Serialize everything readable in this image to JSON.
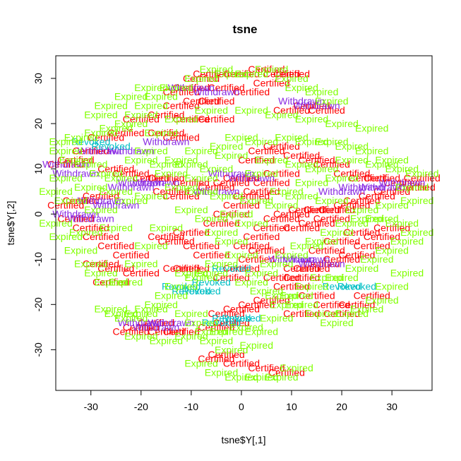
{
  "chart_data": {
    "type": "scatter",
    "title": "tsne",
    "xlabel": "tsne$Y[,1]",
    "ylabel": "tsne$Y[,2]",
    "xlim": [
      -37,
      38
    ],
    "ylim": [
      -39,
      35
    ],
    "xticks": [
      -30,
      -20,
      -10,
      0,
      10,
      20,
      30
    ],
    "yticks": [
      -30,
      -20,
      -10,
      0,
      10,
      20,
      30
    ],
    "grid": false,
    "legend": "none",
    "point_labels": [
      "Certified",
      "Withdrawn",
      "Expired",
      "Revoked"
    ],
    "colors": {
      "Certified": "#ff0000",
      "Withdrawn": "#8a2be2",
      "Expired": "#80ff00",
      "Revoked": "#00bfc4"
    },
    "series": [
      {
        "name": "Certified",
        "points": [
          [
            -6,
            31
          ],
          [
            0,
            31
          ],
          [
            5,
            32
          ],
          [
            8,
            31
          ],
          [
            10,
            31
          ],
          [
            -10,
            28
          ],
          [
            -12,
            27
          ],
          [
            -3,
            28
          ],
          [
            6,
            29
          ],
          [
            -8,
            25
          ],
          [
            -12,
            24
          ],
          [
            -5,
            25
          ],
          [
            14,
            24
          ],
          [
            17,
            23
          ],
          [
            -15,
            22
          ],
          [
            -10,
            21
          ],
          [
            -5,
            21
          ],
          [
            -20,
            21
          ],
          [
            -23,
            18
          ],
          [
            -27,
            17
          ],
          [
            -15,
            18
          ],
          [
            -12,
            17
          ],
          [
            -30,
            14
          ],
          [
            -33,
            12
          ],
          [
            -35,
            11
          ],
          [
            -25,
            10
          ],
          [
            -22,
            9
          ],
          [
            -18,
            8
          ],
          [
            -15,
            8
          ],
          [
            -10,
            7
          ],
          [
            -5,
            6
          ],
          [
            -2,
            7
          ],
          [
            -28,
            4
          ],
          [
            -32,
            3
          ],
          [
            -35,
            2
          ],
          [
            -33,
            -1
          ],
          [
            -30,
            -3
          ],
          [
            -28,
            -5
          ],
          [
            -25,
            -7
          ],
          [
            -22,
            -9
          ],
          [
            -28,
            -11
          ],
          [
            -25,
            -12
          ],
          [
            -20,
            -13
          ],
          [
            -26,
            -15
          ],
          [
            -13,
            -6
          ],
          [
            -15,
            -5
          ],
          [
            -10,
            -4
          ],
          [
            -8,
            -7
          ],
          [
            -12,
            -12
          ],
          [
            -10,
            -12
          ],
          [
            -6,
            -9
          ],
          [
            -4,
            -2
          ],
          [
            -2,
            0
          ],
          [
            0,
            2
          ],
          [
            2,
            4
          ],
          [
            4,
            5
          ],
          [
            6,
            7
          ],
          [
            8,
            9
          ],
          [
            3,
            12
          ],
          [
            5,
            14
          ],
          [
            8,
            15
          ],
          [
            12,
            13
          ],
          [
            15,
            12
          ],
          [
            18,
            11
          ],
          [
            22,
            9
          ],
          [
            25,
            8
          ],
          [
            28,
            8
          ],
          [
            32,
            7
          ],
          [
            35,
            6
          ],
          [
            36,
            8
          ],
          [
            30,
            5
          ],
          [
            27,
            4
          ],
          [
            24,
            3
          ],
          [
            22,
            2
          ],
          [
            19,
            1
          ],
          [
            16,
            1
          ],
          [
            13,
            1
          ],
          [
            10,
            0
          ],
          [
            8,
            -1
          ],
          [
            6,
            -3
          ],
          [
            4,
            -5
          ],
          [
            2,
            -7
          ],
          [
            5,
            -8
          ],
          [
            3,
            -10
          ],
          [
            0,
            -12
          ],
          [
            -2,
            -14
          ],
          [
            8,
            -14
          ],
          [
            12,
            -12
          ],
          [
            16,
            -11
          ],
          [
            20,
            -10
          ],
          [
            23,
            -9
          ],
          [
            26,
            -7
          ],
          [
            28,
            -5
          ],
          [
            30,
            -3
          ],
          [
            24,
            -4
          ],
          [
            20,
            -6
          ],
          [
            17,
            -8
          ],
          [
            14,
            -12
          ],
          [
            12,
            -14
          ],
          [
            10,
            -16
          ],
          [
            15,
            -18
          ],
          [
            18,
            -20
          ],
          [
            20,
            -22
          ],
          [
            23,
            -20
          ],
          [
            26,
            -18
          ],
          [
            12,
            -22
          ],
          [
            6,
            -19
          ],
          [
            3,
            -20
          ],
          [
            0,
            -21
          ],
          [
            -3,
            -22
          ],
          [
            -5,
            -25
          ],
          [
            -2,
            -24
          ],
          [
            -17,
            -24
          ],
          [
            -15,
            -26
          ],
          [
            -12,
            -26
          ],
          [
            -20,
            -25
          ],
          [
            -22,
            -26
          ],
          [
            -5,
            -32
          ],
          [
            0,
            -33
          ],
          [
            5,
            -34
          ],
          [
            9,
            -35
          ],
          [
            -3,
            -31
          ],
          [
            -14,
            5
          ],
          [
            -12,
            4
          ],
          [
            0,
            8
          ],
          [
            12,
            -3
          ],
          [
            15,
            -2
          ],
          [
            18,
            -1
          ],
          [
            -8,
            30
          ],
          [
            2,
            27
          ],
          [
            10,
            23
          ]
        ]
      },
      {
        "name": "Withdrawn",
        "points": [
          [
            -10,
            28
          ],
          [
            -5,
            27
          ],
          [
            12,
            25
          ],
          [
            15,
            24
          ],
          [
            -28,
            14
          ],
          [
            -22,
            14
          ],
          [
            -15,
            16
          ],
          [
            -35,
            11
          ],
          [
            -33,
            9
          ],
          [
            -20,
            7
          ],
          [
            -17,
            7
          ],
          [
            -22,
            6
          ],
          [
            -28,
            3
          ],
          [
            -25,
            2
          ],
          [
            -33,
            0
          ],
          [
            -30,
            -1
          ],
          [
            2,
            8
          ],
          [
            -2,
            9
          ],
          [
            -5,
            5
          ],
          [
            20,
            5
          ],
          [
            24,
            6
          ],
          [
            28,
            6
          ],
          [
            32,
            7
          ],
          [
            10,
            -10
          ],
          [
            13,
            -10
          ],
          [
            16,
            -11
          ],
          [
            -20,
            -24
          ],
          [
            -17,
            -25
          ],
          [
            -14,
            -24
          ]
        ]
      },
      {
        "name": "Revoked",
        "points": [
          [
            -12,
            -16
          ],
          [
            -10,
            -17
          ],
          [
            -8,
            -17
          ],
          [
            -6,
            -15
          ],
          [
            -2,
            -12
          ],
          [
            -4,
            -24
          ],
          [
            -2,
            -23
          ],
          [
            0,
            -23
          ],
          [
            20,
            -16
          ],
          [
            23,
            -16
          ],
          [
            -30,
            16
          ],
          [
            -26,
            15
          ]
        ]
      },
      {
        "name": "Expired",
        "points": [
          [
            -8,
            30
          ],
          [
            -5,
            32
          ],
          [
            -2,
            31
          ],
          [
            2,
            31
          ],
          [
            6,
            32
          ],
          [
            10,
            30
          ],
          [
            -13,
            28
          ],
          [
            -16,
            26
          ],
          [
            -18,
            24
          ],
          [
            -20,
            22
          ],
          [
            -22,
            20
          ],
          [
            -25,
            19
          ],
          [
            -28,
            18
          ],
          [
            -32,
            17
          ],
          [
            -35,
            16
          ],
          [
            -20,
            12
          ],
          [
            -15,
            11
          ],
          [
            -10,
            11
          ],
          [
            -5,
            10
          ],
          [
            -8,
            14
          ],
          [
            -3,
            15
          ],
          [
            0,
            17
          ],
          [
            4,
            16
          ],
          [
            10,
            17
          ],
          [
            14,
            16
          ],
          [
            18,
            16
          ],
          [
            22,
            15
          ],
          [
            26,
            14
          ],
          [
            12,
            11
          ],
          [
            16,
            10
          ],
          [
            22,
            12
          ],
          [
            28,
            11
          ],
          [
            32,
            10
          ],
          [
            36,
            9
          ],
          [
            -30,
            11
          ],
          [
            -35,
            8
          ],
          [
            -37,
            5
          ],
          [
            -34,
            3
          ],
          [
            -30,
            6
          ],
          [
            -25,
            5
          ],
          [
            -22,
            3
          ],
          [
            -18,
            4
          ],
          [
            -12,
            6
          ],
          [
            -8,
            5
          ],
          [
            -3,
            4
          ],
          [
            3,
            3
          ],
          [
            8,
            2
          ],
          [
            12,
            4
          ],
          [
            18,
            3
          ],
          [
            24,
            1
          ],
          [
            30,
            2
          ],
          [
            35,
            3
          ],
          [
            -37,
            -2
          ],
          [
            -35,
            -5
          ],
          [
            -32,
            -8
          ],
          [
            -30,
            -11
          ],
          [
            -28,
            -13
          ],
          [
            -26,
            -15
          ],
          [
            -23,
            -15
          ],
          [
            -20,
            -11
          ],
          [
            -18,
            -7
          ],
          [
            -15,
            -3
          ],
          [
            -10,
            1
          ],
          [
            -6,
            -1
          ],
          [
            -4,
            -4
          ],
          [
            -2,
            -6
          ],
          [
            0,
            -9
          ],
          [
            -4,
            -11
          ],
          [
            -6,
            -13
          ],
          [
            -8,
            -14
          ],
          [
            -10,
            -13
          ],
          [
            -12,
            -16
          ],
          [
            -14,
            -18
          ],
          [
            -16,
            -20
          ],
          [
            -18,
            -21
          ],
          [
            -20,
            -22
          ],
          [
            -22,
            -23
          ],
          [
            -24,
            -22
          ],
          [
            -26,
            -21
          ],
          [
            -10,
            -22
          ],
          [
            -8,
            -24
          ],
          [
            -6,
            -26
          ],
          [
            -3,
            -26
          ],
          [
            1,
            -25
          ],
          [
            4,
            -26
          ],
          [
            7,
            -23
          ],
          [
            9,
            -20
          ],
          [
            11,
            -18
          ],
          [
            14,
            -16
          ],
          [
            17,
            -14
          ],
          [
            20,
            -14
          ],
          [
            24,
            -12
          ],
          [
            27,
            -10
          ],
          [
            30,
            -8
          ],
          [
            33,
            -6
          ],
          [
            35,
            -4
          ],
          [
            32,
            -2
          ],
          [
            28,
            -1
          ],
          [
            25,
            -1
          ],
          [
            22,
            -2
          ],
          [
            19,
            -4
          ],
          [
            16,
            -6
          ],
          [
            13,
            -7
          ],
          [
            10,
            -9
          ],
          [
            7,
            -11
          ],
          [
            4,
            -13
          ],
          [
            2,
            -15
          ],
          [
            5,
            -17
          ],
          [
            8,
            -18
          ],
          [
            12,
            -20
          ],
          [
            16,
            -22
          ],
          [
            19,
            -24
          ],
          [
            22,
            -22
          ],
          [
            25,
            -21
          ],
          [
            28,
            -19
          ],
          [
            30,
            -16
          ],
          [
            33,
            -13
          ],
          [
            -28,
            1
          ],
          [
            -31,
            -4
          ],
          [
            -25,
            -3
          ],
          [
            -8,
            -33
          ],
          [
            -4,
            -35
          ],
          [
            0,
            -36
          ],
          [
            4,
            -36
          ],
          [
            8,
            -36
          ],
          [
            11,
            -34
          ],
          [
            -2,
            -30
          ],
          [
            3,
            -29
          ],
          [
            -35,
            14
          ],
          [
            -33,
            12
          ],
          [
            -16,
            18
          ],
          [
            -12,
            21
          ],
          [
            -6,
            23
          ],
          [
            2,
            23
          ],
          [
            8,
            22
          ],
          [
            14,
            21
          ],
          [
            20,
            20
          ],
          [
            26,
            19
          ],
          [
            -18,
            28
          ],
          [
            -22,
            26
          ],
          [
            -26,
            24
          ],
          [
            -28,
            22
          ],
          [
            12,
            28
          ],
          [
            16,
            27
          ],
          [
            18,
            25
          ],
          [
            -2,
            13
          ],
          [
            6,
            12
          ],
          [
            -14,
            9
          ],
          [
            -8,
            8
          ],
          [
            4,
            9
          ],
          [
            -1,
            0
          ],
          [
            2,
            -2
          ],
          [
            9,
            5
          ],
          [
            14,
            7
          ],
          [
            20,
            8
          ],
          [
            -24,
            8
          ],
          [
            -27,
            9
          ],
          [
            30,
            12
          ],
          [
            34,
            6
          ],
          [
            -20,
            -27
          ],
          [
            -15,
            -28
          ],
          [
            -10,
            -27
          ],
          [
            -5,
            -28
          ],
          [
            -12,
            12
          ],
          [
            -18,
            14
          ]
        ]
      }
    ]
  }
}
